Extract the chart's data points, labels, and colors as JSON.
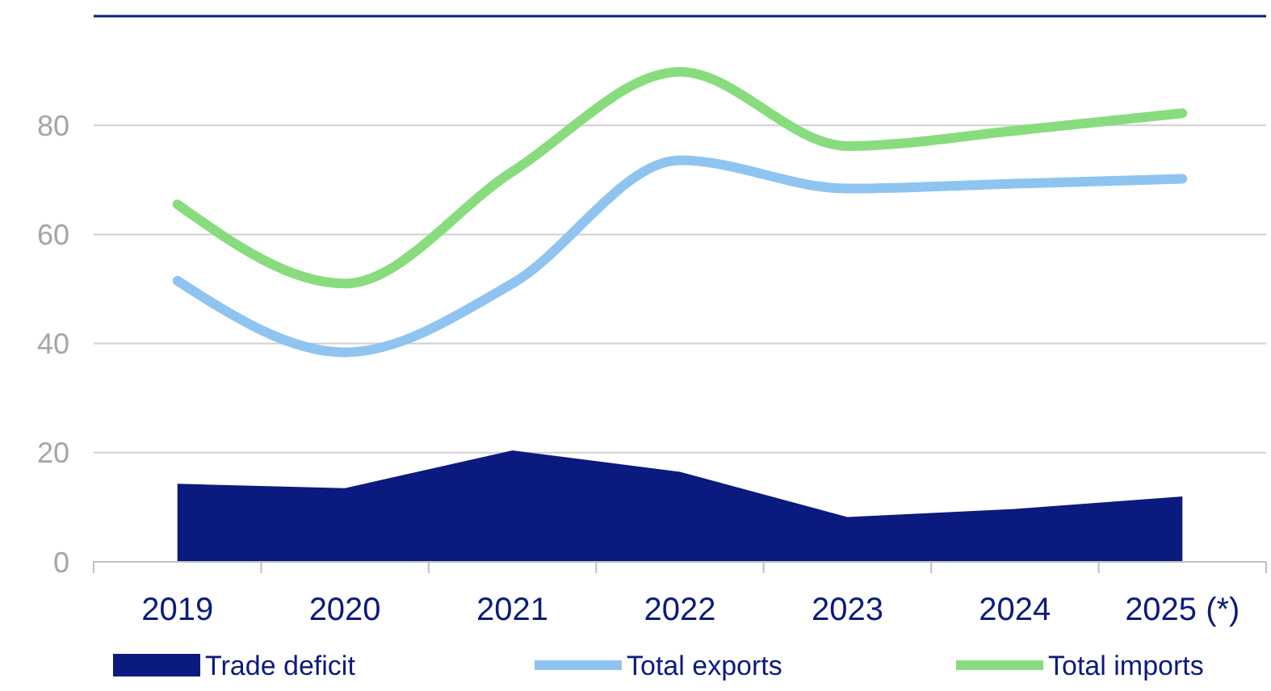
{
  "chart_data": {
    "type": "line",
    "categories": [
      "2019",
      "2020",
      "2021",
      "2022",
      "2023",
      "2024",
      "2025 (*)"
    ],
    "series": [
      {
        "name": "Trade deficit",
        "type": "area",
        "color": "#0b1a7e",
        "values": [
          14.3,
          13.5,
          20.4,
          16.5,
          8.2,
          9.7,
          12
        ]
      },
      {
        "name": "Total exports",
        "color": "#8fc4f0",
        "values": [
          51.5,
          38.4,
          51,
          73.6,
          68.4,
          69.3,
          70.2
        ]
      },
      {
        "name": "Total imports",
        "color": "#88dc7e",
        "values": [
          65.5,
          51,
          71.5,
          89.8,
          76.2,
          79,
          82.2
        ]
      }
    ],
    "ylim": [
      0,
      100
    ],
    "yticks": [
      0,
      20,
      40,
      60,
      80
    ],
    "grid": "y",
    "legend": "bottom"
  }
}
